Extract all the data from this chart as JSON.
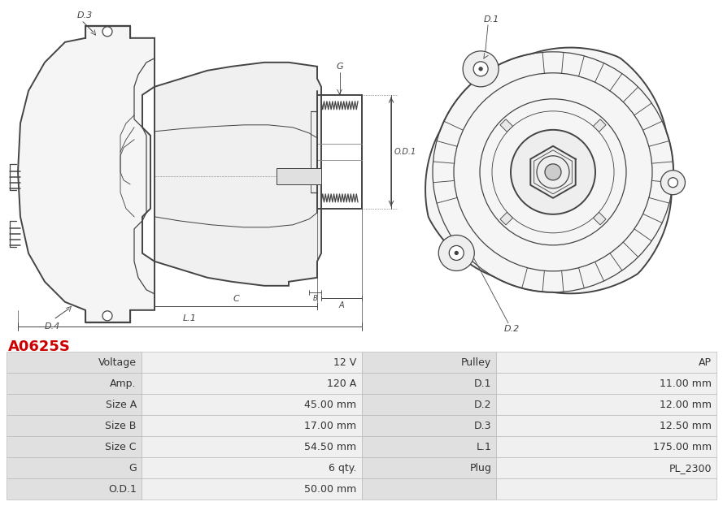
{
  "title": "A0625S",
  "title_color": "#cc0000",
  "table_rows": [
    [
      "Voltage",
      "12 V",
      "Pulley",
      "AP"
    ],
    [
      "Amp.",
      "120 A",
      "D.1",
      "11.00 mm"
    ],
    [
      "Size A",
      "45.00 mm",
      "D.2",
      "12.00 mm"
    ],
    [
      "Size B",
      "17.00 mm",
      "D.3",
      "12.50 mm"
    ],
    [
      "Size C",
      "54.50 mm",
      "L.1",
      "175.00 mm"
    ],
    [
      "G",
      "6 qty.",
      "Plug",
      "PL_2300"
    ],
    [
      "O.D.1",
      "50.00 mm",
      "",
      ""
    ]
  ],
  "bg_color": "#ffffff",
  "cell_bg_label": "#e0e0e0",
  "cell_bg_value": "#f0f0f0",
  "border_color": "#bbbbbb",
  "font_color": "#333333",
  "font_size": 9,
  "line_color": "#444444",
  "line_width": 0.9
}
